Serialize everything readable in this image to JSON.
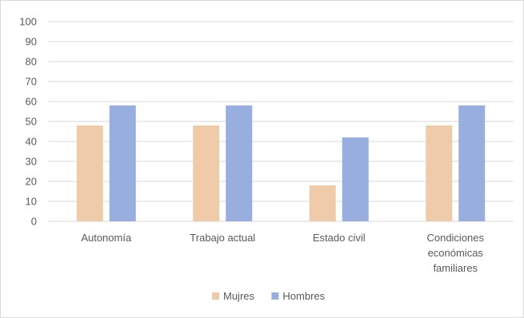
{
  "chart_data": {
    "type": "bar",
    "categories": [
      [
        "Autonomía"
      ],
      [
        "Trabajo actual"
      ],
      [
        "Estado civil"
      ],
      [
        "Condiciones",
        "económicas",
        "familiares"
      ]
    ],
    "series": [
      {
        "name": "Mujres",
        "color": "#F0CBA9",
        "values": [
          48,
          48,
          18,
          48
        ]
      },
      {
        "name": "Hombres",
        "color": "#97AEDF",
        "values": [
          58,
          58,
          42,
          58
        ]
      }
    ],
    "ylim": [
      0,
      100
    ],
    "yticks": [
      0,
      10,
      20,
      30,
      40,
      50,
      60,
      70,
      80,
      90,
      100
    ],
    "grid": true,
    "gridColor": "#d9d9d9",
    "legend": "bottom"
  }
}
